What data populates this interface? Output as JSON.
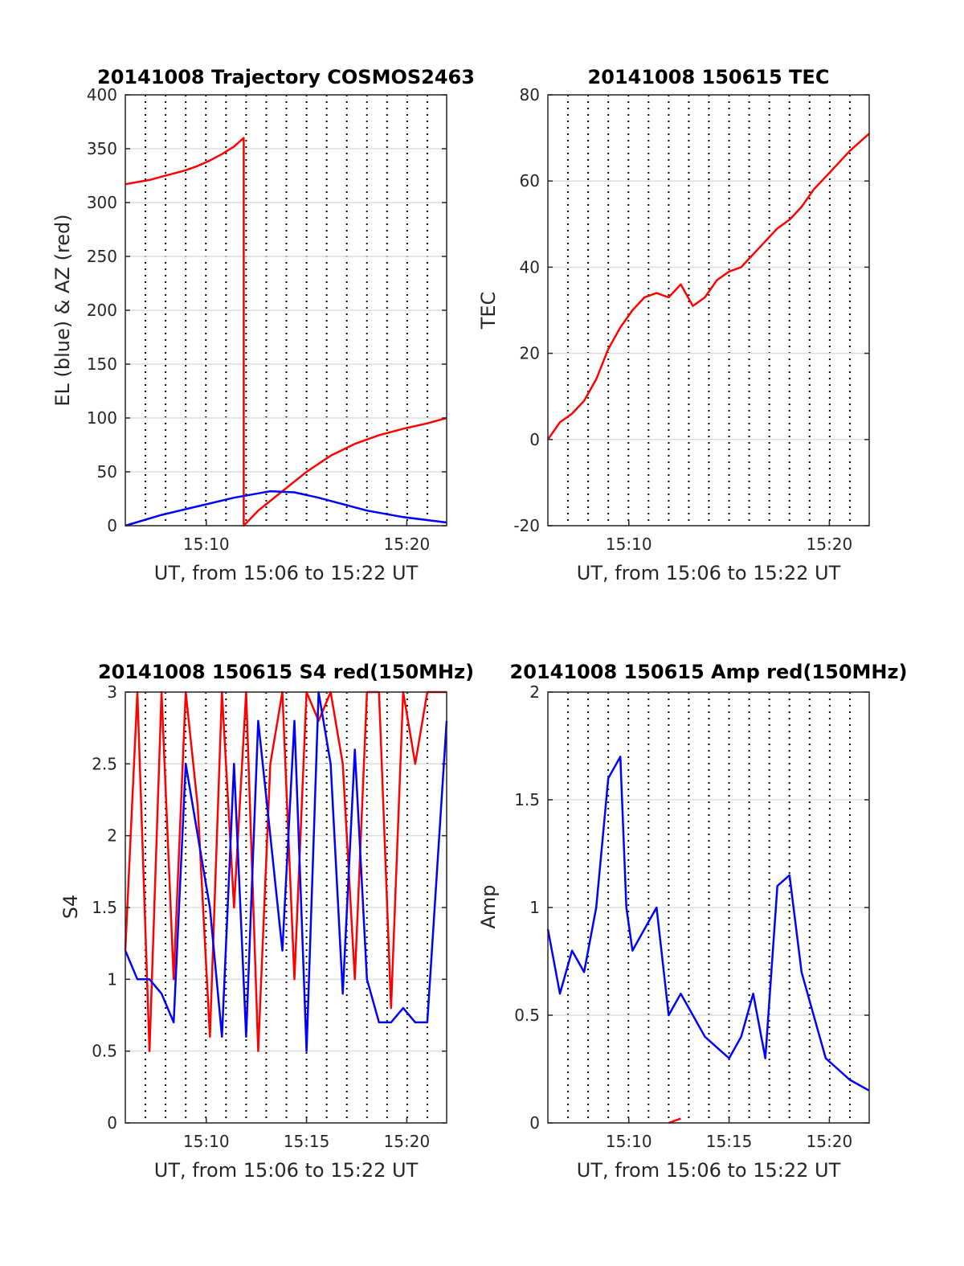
{
  "chart_data": [
    {
      "type": "line",
      "title": "20141008 Trajectory COSMOS2463",
      "xlabel": "UT, from 15:06 to 15:22 UT",
      "ylabel": "EL (blue) & AZ (red)",
      "xlim": [
        15.1,
        15.95
      ],
      "ylim": [
        0,
        400
      ],
      "x_ticks": [
        15.167,
        15.333
      ],
      "x_tick_labels": [
        "15:10",
        "15:20"
      ],
      "y_ticks": [
        0,
        50,
        100,
        150,
        200,
        250,
        300,
        350,
        400
      ],
      "y_tick_labels": [
        "0",
        "50",
        "100",
        "150",
        "200",
        "250",
        "300",
        "350",
        "400"
      ],
      "grid": "horizontal solid, vertical dotted",
      "series": [
        {
          "color": "#ff0000",
          "x": [
            15.1,
            15.11,
            15.12,
            15.13,
            15.14,
            15.15,
            15.16,
            15.17,
            15.18,
            15.19,
            15.198,
            15.198,
            15.21,
            15.23,
            15.25,
            15.27,
            15.29,
            15.31,
            15.33,
            15.35,
            15.366
          ],
          "y": [
            317,
            319,
            321,
            324,
            327,
            330,
            334,
            339,
            345,
            352,
            360,
            0,
            14,
            32,
            50,
            65,
            76,
            84,
            90,
            95,
            100
          ]
        },
        {
          "color": "#0000ff",
          "x": [
            15.1,
            15.13,
            15.16,
            15.19,
            15.21,
            15.22,
            15.24,
            15.26,
            15.28,
            15.3,
            15.33,
            15.366
          ],
          "y": [
            0,
            10,
            18,
            26,
            30,
            32,
            31,
            26,
            20,
            14,
            8,
            3
          ]
        }
      ]
    },
    {
      "type": "line",
      "title": "20141008 150615 TEC",
      "xlabel": "UT, from 15:06 to 15:22 UT",
      "ylabel": "TEC",
      "xlim": [
        15.1,
        15.95
      ],
      "ylim": [
        -20,
        80
      ],
      "x_ticks": [
        15.167,
        15.333
      ],
      "x_tick_labels": [
        "15:10",
        "15:20"
      ],
      "y_ticks": [
        -20,
        0,
        20,
        40,
        60,
        80
      ],
      "y_tick_labels": [
        "-20",
        "0",
        "20",
        "40",
        "60",
        "80"
      ],
      "grid": "horizontal solid, vertical dotted",
      "series": [
        {
          "color": "#ff0000",
          "x": [
            15.1,
            15.11,
            15.12,
            15.13,
            15.14,
            15.15,
            15.16,
            15.17,
            15.18,
            15.19,
            15.2,
            15.21,
            15.22,
            15.23,
            15.24,
            15.25,
            15.26,
            15.27,
            15.28,
            15.29,
            15.3,
            15.31,
            15.32,
            15.33,
            15.34,
            15.35,
            15.366
          ],
          "y": [
            0,
            4,
            6,
            9,
            14,
            21,
            26,
            30,
            33,
            34,
            33,
            36,
            31,
            33,
            37,
            39,
            40,
            43,
            46,
            49,
            51,
            54,
            58,
            61,
            64,
            67,
            71
          ]
        }
      ]
    },
    {
      "type": "line",
      "title": "20141008 150615 S4 red(150MHz)",
      "xlabel": "UT, from 15:06 to 15:22 UT",
      "ylabel": "S4",
      "xlim": [
        15.1,
        15.366
      ],
      "ylim": [
        0,
        3
      ],
      "x_ticks": [
        15.167,
        15.25,
        15.333
      ],
      "x_tick_labels": [
        "15:10",
        "15:15",
        "15:20"
      ],
      "y_ticks": [
        0,
        0.5,
        1,
        1.5,
        2,
        2.5,
        3
      ],
      "y_tick_labels": [
        "0",
        "0.5",
        "1",
        "1.5",
        "2",
        "2.5",
        "3"
      ],
      "grid": "horizontal solid, vertical dotted",
      "series": [
        {
          "color": "#ff0000",
          "x": [
            15.1,
            15.11,
            15.12,
            15.13,
            15.14,
            15.15,
            15.16,
            15.17,
            15.18,
            15.19,
            15.2,
            15.21,
            15.22,
            15.23,
            15.24,
            15.25,
            15.26,
            15.27,
            15.28,
            15.29,
            15.3,
            15.31,
            15.32,
            15.33,
            15.34,
            15.35,
            15.366
          ],
          "y": [
            1.2,
            3,
            0.5,
            3,
            1.0,
            3,
            2.2,
            0.6,
            3,
            1.5,
            3,
            0.5,
            2.5,
            3,
            1.0,
            3,
            2.8,
            3,
            2.5,
            1.0,
            3,
            3,
            0.8,
            3,
            2.5,
            3,
            3
          ]
        },
        {
          "color": "#0000ff",
          "x": [
            15.1,
            15.11,
            15.12,
            15.13,
            15.14,
            15.15,
            15.16,
            15.17,
            15.18,
            15.19,
            15.2,
            15.21,
            15.22,
            15.23,
            15.24,
            15.25,
            15.26,
            15.27,
            15.28,
            15.29,
            15.3,
            15.31,
            15.32,
            15.33,
            15.34,
            15.35,
            15.366
          ],
          "y": [
            1.2,
            1.0,
            1.0,
            0.9,
            0.7,
            2.5,
            2.0,
            1.5,
            0.6,
            2.5,
            0.6,
            2.8,
            2.0,
            1.2,
            2.8,
            0.5,
            3.0,
            2.5,
            0.9,
            2.6,
            1.0,
            0.7,
            0.7,
            0.8,
            0.7,
            0.7,
            2.8
          ]
        }
      ]
    },
    {
      "type": "line",
      "title": "20141008 150615 Amp red(150MHz)",
      "xlabel": "UT, from 15:06 to 15:22 UT",
      "ylabel": "Amp",
      "xlim": [
        15.1,
        15.366
      ],
      "ylim": [
        0,
        2
      ],
      "x_ticks": [
        15.167,
        15.25,
        15.333
      ],
      "x_tick_labels": [
        "15:10",
        "15:15",
        "15:20"
      ],
      "y_ticks": [
        0,
        0.5,
        1,
        1.5,
        2
      ],
      "y_tick_labels": [
        "0",
        "0.5",
        "1",
        "1.5",
        "2"
      ],
      "grid": "horizontal solid, vertical dotted",
      "series": [
        {
          "color": "#0000ff",
          "x": [
            15.1,
            15.11,
            15.12,
            15.13,
            15.14,
            15.15,
            15.16,
            15.165,
            15.17,
            15.18,
            15.19,
            15.2,
            15.21,
            15.22,
            15.23,
            15.24,
            15.25,
            15.26,
            15.27,
            15.28,
            15.29,
            15.3,
            15.31,
            15.32,
            15.33,
            15.34,
            15.35,
            15.366
          ],
          "y": [
            0.9,
            0.6,
            0.8,
            0.7,
            1.0,
            1.6,
            1.7,
            1.0,
            0.8,
            0.9,
            1.0,
            0.5,
            0.6,
            0.5,
            0.4,
            0.35,
            0.3,
            0.4,
            0.6,
            0.3,
            1.1,
            1.15,
            0.7,
            0.5,
            0.3,
            0.25,
            0.2,
            0.15
          ]
        },
        {
          "color": "#ff0000",
          "x": [
            15.2,
            15.21
          ],
          "y": [
            0.0,
            0.02
          ]
        }
      ]
    }
  ]
}
